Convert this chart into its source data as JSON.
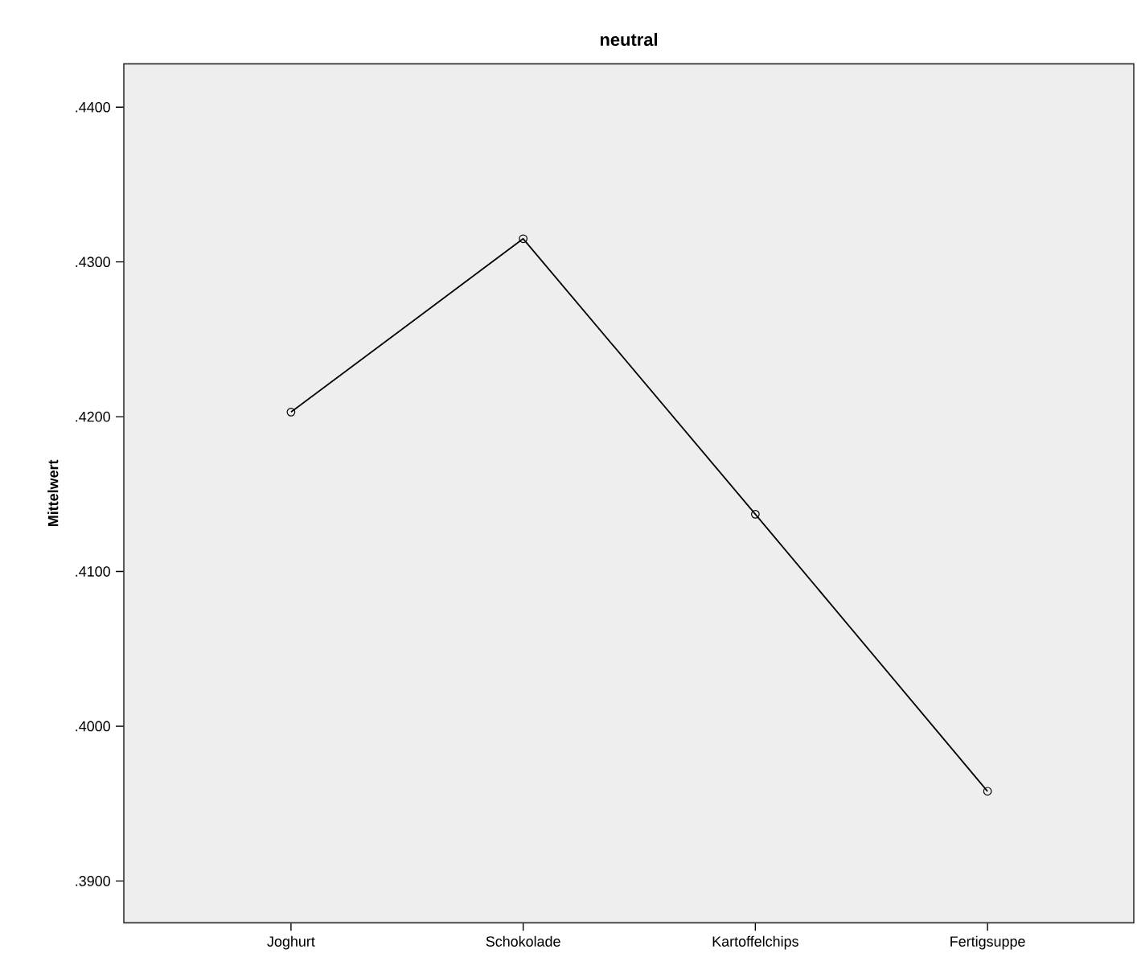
{
  "chart_data": {
    "type": "line",
    "title": "neutral",
    "ylabel": "Mittelwert",
    "categories": [
      "Joghurt",
      "Schokolade",
      "Kartoffelchips",
      "Fertigsuppe"
    ],
    "series": [
      {
        "color": "#000000",
        "values": [
          0.4203,
          0.4315,
          0.4137,
          0.3958
        ]
      }
    ],
    "ylim": [
      0.3873,
      0.4428
    ],
    "yticks": [
      {
        "value": 0.39,
        "label": ".3900"
      },
      {
        "value": 0.4,
        "label": ".4000"
      },
      {
        "value": 0.41,
        "label": ".4100"
      },
      {
        "value": 0.42,
        "label": ".4200"
      },
      {
        "value": 0.43,
        "label": ".4300"
      },
      {
        "value": 0.44,
        "label": ".4400"
      }
    ],
    "marker": "circle",
    "line_style": "solid"
  }
}
